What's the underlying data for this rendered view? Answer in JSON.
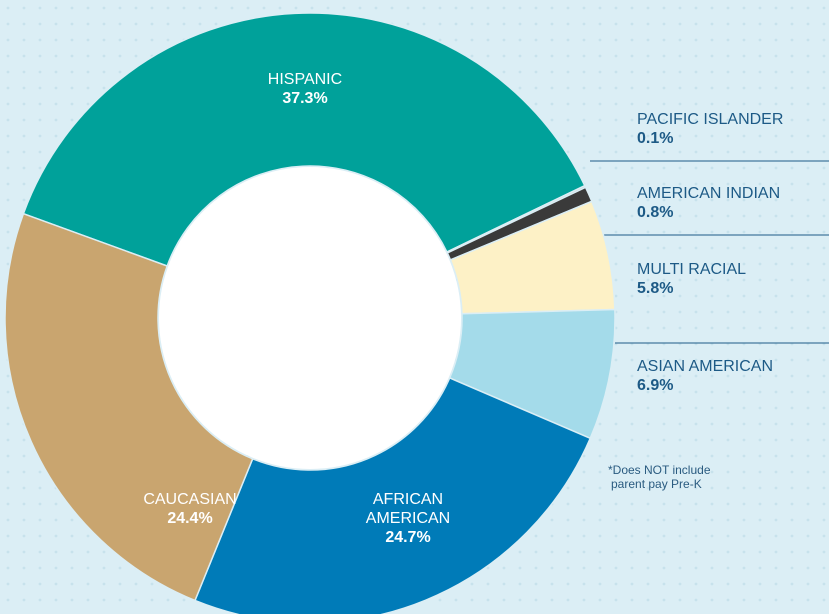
{
  "chart_data": {
    "type": "donut",
    "categories": [
      "HISPANIC",
      "PACIFIC ISLANDER",
      "AMERICAN INDIAN",
      "MULTI RACIAL",
      "ASIAN AMERICAN",
      "AFRICAN AMERICAN",
      "CAUCASIAN"
    ],
    "values": [
      37.3,
      0.1,
      0.8,
      5.8,
      6.9,
      24.7,
      24.4
    ],
    "value_labels": [
      "37.3%",
      "0.1%",
      "0.8%",
      "5.8%",
      "6.9%",
      "24.7%",
      "24.4%"
    ],
    "colors": [
      "#00a19a",
      "#c9c9c9",
      "#3a3a3a",
      "#fdf1c6",
      "#a4dbea",
      "#007bb8",
      "#c9a56f"
    ],
    "note": [
      "*Does NOT include",
      "parent pay Pre-K"
    ]
  }
}
